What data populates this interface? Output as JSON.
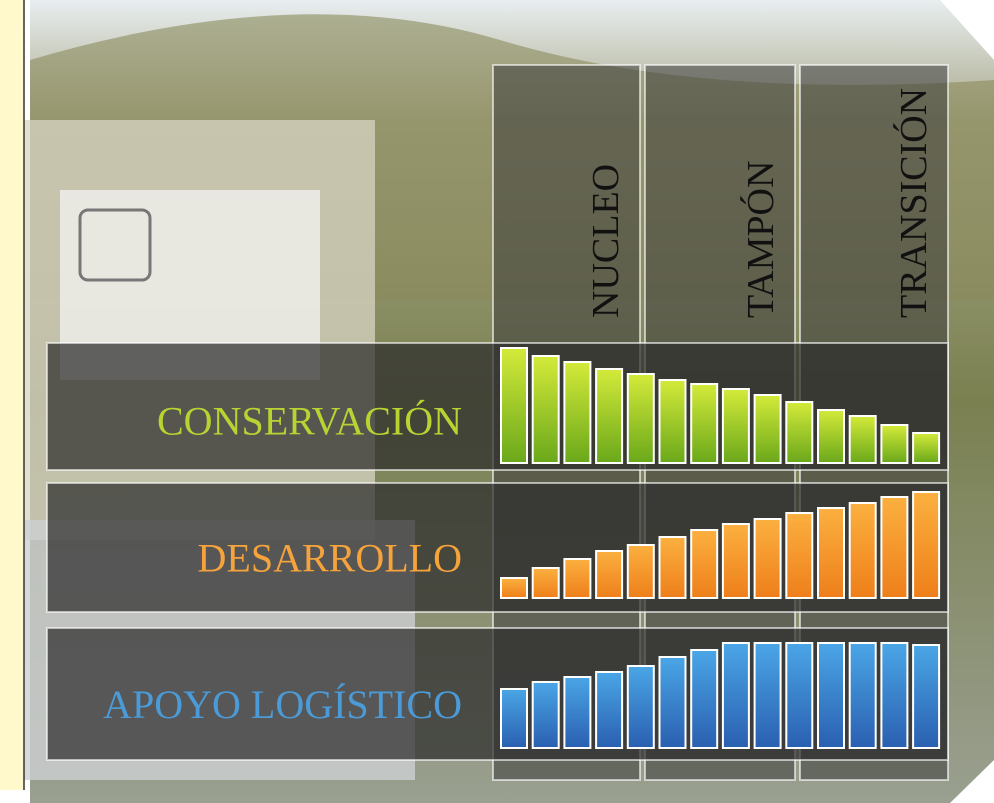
{
  "zones": [
    "NUCLEO",
    "TAMPÓN",
    "TRANSICIÓN"
  ],
  "chart_data": [
    {
      "type": "bar",
      "title": "CONSERVACIÓN",
      "color": "#8dc21f",
      "categories": [
        null,
        null,
        null,
        null,
        null,
        null,
        null,
        null,
        null,
        null,
        null,
        null,
        null,
        null
      ],
      "values": [
        115,
        107,
        101,
        94,
        89,
        83,
        79,
        74,
        68,
        61,
        53,
        47,
        38,
        30
      ]
    },
    {
      "type": "bar",
      "title": "DESARROLLO",
      "color": "#f39223",
      "categories": [
        null,
        null,
        null,
        null,
        null,
        null,
        null,
        null,
        null,
        null,
        null,
        null,
        null,
        null
      ],
      "values": [
        20,
        30,
        39,
        47,
        53,
        61,
        68,
        74,
        79,
        85,
        90,
        95,
        101,
        106
      ]
    },
    {
      "type": "bar",
      "title": "APOYO LOGÍSTICO",
      "color": "#3a86cc",
      "categories": [
        null,
        null,
        null,
        null,
        null,
        null,
        null,
        null,
        null,
        null,
        null,
        null,
        null,
        null
      ],
      "values": [
        59,
        66,
        71,
        76,
        82,
        91,
        98,
        105,
        105,
        105,
        105,
        105,
        105,
        103
      ]
    }
  ]
}
